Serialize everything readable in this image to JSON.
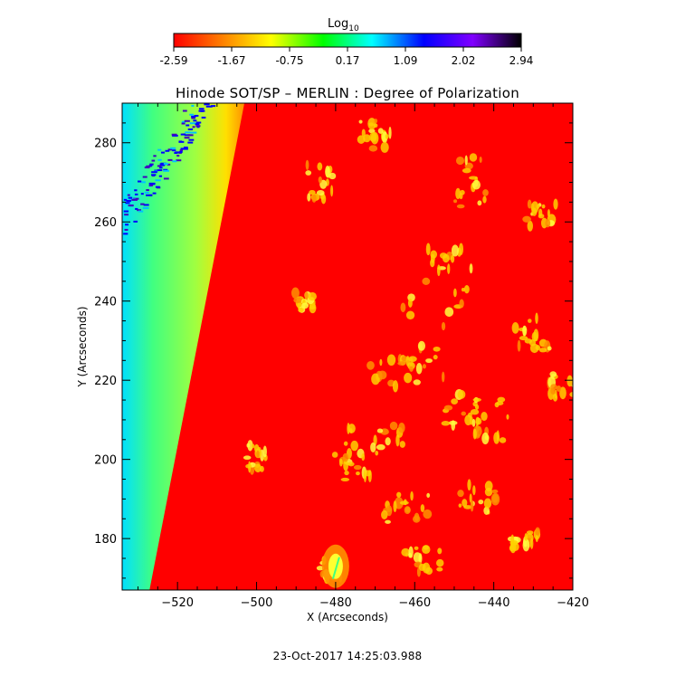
{
  "chart_data": {
    "type": "heatmap",
    "title": "Hinode SOT/SP – MERLIN : Degree of Polarization",
    "xlabel": "X (Arcseconds)",
    "ylabel": "Y (Arcseconds)",
    "xlim": [
      -534,
      -420
    ],
    "ylim": [
      167,
      290
    ],
    "x_ticks": [
      -520,
      -500,
      -480,
      -460,
      -440,
      -420
    ],
    "y_ticks": [
      180,
      200,
      220,
      240,
      260,
      280
    ],
    "colorbar": {
      "label": "Log",
      "label_subscript": "10",
      "ticks": [
        "-2.59",
        "-1.67",
        "-0.75",
        "0.17",
        "1.09",
        "2.02",
        "2.94"
      ],
      "range": [
        -2.59,
        2.94
      ],
      "colors": [
        "#ff0000",
        "#ff8000",
        "#ffff00",
        "#00ff00",
        "#00ffff",
        "#0000ff",
        "#8000ff",
        "#000000"
      ]
    },
    "limb": {
      "x_at_ylim_min": -528,
      "x_at_ylim_max": -504
    },
    "background_color": "#ff0000",
    "grid": false,
    "timestamp": "23-Oct-2017 14:25:03.988"
  }
}
